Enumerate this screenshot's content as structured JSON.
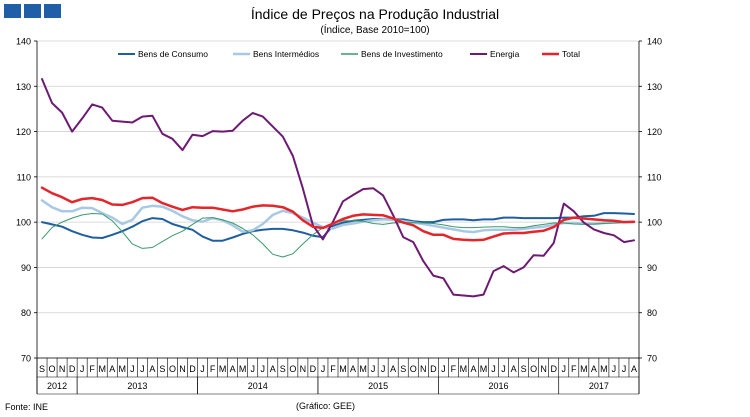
{
  "header": {
    "logo_icon": "ine-logo-blocks"
  },
  "chart_data": {
    "type": "line",
    "title": "Índice de Preços na Produção Industrial",
    "subtitle": "(Índice, Base 2010=100)",
    "ylim": [
      70,
      140
    ],
    "yticks": [
      70,
      80,
      90,
      100,
      110,
      120,
      130,
      140
    ],
    "grid": true,
    "legend": "top",
    "months": [
      "S",
      "O",
      "N",
      "D",
      "J",
      "F",
      "M",
      "A",
      "M",
      "J",
      "J",
      "A",
      "S",
      "O",
      "N",
      "D",
      "J",
      "F",
      "M",
      "A",
      "M",
      "J",
      "J",
      "A",
      "S",
      "O",
      "N",
      "D",
      "J",
      "F",
      "M",
      "A",
      "M",
      "J",
      "J",
      "A",
      "S",
      "O",
      "N",
      "D",
      "J",
      "F",
      "M",
      "A",
      "M",
      "J",
      "J",
      "A",
      "S",
      "O",
      "N",
      "D",
      "J",
      "F",
      "M",
      "A",
      "M",
      "J",
      "J",
      "A"
    ],
    "years": [
      {
        "label": "2012",
        "start": 0,
        "end": 4
      },
      {
        "label": "2013",
        "start": 4,
        "end": 16
      },
      {
        "label": "2014",
        "start": 16,
        "end": 28
      },
      {
        "label": "2015",
        "start": 28,
        "end": 40
      },
      {
        "label": "2016",
        "start": 40,
        "end": 52
      },
      {
        "label": "2017",
        "start": 52,
        "end": 60
      }
    ],
    "series": [
      {
        "name": "Bens de Consumo",
        "color": "#1f5fa0",
        "width": 2,
        "values": [
          100.0,
          99.5,
          99.0,
          98.0,
          97.2,
          96.6,
          96.5,
          97.2,
          98.0,
          99.0,
          100.2,
          100.9,
          100.7,
          99.6,
          98.9,
          98.3,
          96.8,
          95.9,
          95.9,
          96.6,
          97.4,
          98.0,
          98.3,
          98.5,
          98.5,
          98.2,
          97.7,
          97.0,
          96.7,
          99.2,
          99.9,
          100.3,
          100.5,
          100.7,
          100.7,
          100.6,
          100.6,
          100.2,
          100.0,
          100.0,
          100.5,
          100.6,
          100.6,
          100.4,
          100.6,
          100.6,
          101.0,
          101.0,
          100.9,
          100.9,
          100.9,
          100.9,
          101.0,
          101.0,
          101.3,
          101.4,
          102.0,
          102.0,
          101.9,
          101.8
        ]
      },
      {
        "name": "Bens Intermédios",
        "color": "#a9c8e3",
        "width": 2.5,
        "values": [
          104.8,
          103.3,
          102.4,
          102.4,
          103.2,
          103.1,
          102.0,
          101.0,
          99.6,
          100.5,
          103.2,
          103.6,
          103.4,
          102.5,
          101.3,
          100.4,
          100.1,
          100.9,
          100.4,
          99.3,
          97.9,
          98.2,
          99.6,
          101.6,
          102.5,
          102.0,
          101.0,
          99.9,
          98.9,
          98.6,
          99.4,
          99.7,
          100.1,
          100.4,
          100.6,
          100.5,
          100.2,
          99.9,
          99.6,
          99.2,
          98.8,
          98.4,
          98.0,
          97.8,
          98.2,
          98.3,
          98.3,
          98.3,
          98.5,
          98.8,
          99.0,
          99.4,
          99.8,
          99.8,
          99.7,
          99.6,
          99.8,
          99.9,
          100.0,
          100.0
        ]
      },
      {
        "name": "Bens de Investimento",
        "color": "#3a9a6a",
        "width": 1,
        "values": [
          96.3,
          98.8,
          100.0,
          100.9,
          101.6,
          101.9,
          101.8,
          100.3,
          97.9,
          95.2,
          94.2,
          94.4,
          95.7,
          97.0,
          98.0,
          99.5,
          100.9,
          101.0,
          100.5,
          99.8,
          98.6,
          97.2,
          95.2,
          92.9,
          92.3,
          93.0,
          95.2,
          97.2,
          98.8,
          99.8,
          100.3,
          100.3,
          100.2,
          99.7,
          99.5,
          99.8,
          99.9,
          99.9,
          99.8,
          99.7,
          99.4,
          99.0,
          98.8,
          98.8,
          98.9,
          99.0,
          99.0,
          98.8,
          98.8,
          99.2,
          99.5,
          99.8,
          99.8,
          99.6,
          99.5,
          99.6,
          99.7,
          99.8,
          99.9,
          100.0
        ]
      },
      {
        "name": "Energia",
        "color": "#6d1a73",
        "width": 2,
        "values": [
          131.6,
          126.3,
          124.2,
          120.0,
          122.9,
          126.0,
          125.3,
          122.4,
          122.2,
          122.0,
          123.3,
          123.5,
          119.5,
          118.4,
          115.9,
          119.3,
          119.0,
          120.1,
          120.0,
          120.2,
          122.4,
          124.1,
          123.3,
          121.1,
          118.9,
          114.6,
          107.4,
          99.3,
          96.2,
          100.1,
          104.6,
          106.0,
          107.3,
          107.5,
          105.9,
          101.5,
          96.7,
          95.6,
          91.4,
          88.2,
          87.6,
          84.0,
          83.8,
          83.6,
          84.0,
          89.2,
          90.3,
          88.9,
          90.0,
          92.7,
          92.6,
          95.4,
          104.1,
          102.4,
          99.9,
          98.4,
          97.6,
          97.1,
          95.6,
          96.0
        ]
      },
      {
        "name": "Total",
        "color": "#e3262b",
        "width": 2.5,
        "values": [
          107.6,
          106.4,
          105.5,
          104.4,
          105.1,
          105.3,
          104.9,
          103.9,
          103.8,
          104.4,
          105.3,
          105.4,
          104.2,
          103.4,
          102.7,
          103.3,
          103.2,
          103.2,
          102.8,
          102.4,
          102.8,
          103.4,
          103.7,
          103.6,
          103.3,
          102.3,
          100.4,
          99.0,
          98.7,
          99.7,
          100.7,
          101.4,
          101.7,
          101.6,
          101.5,
          100.8,
          99.9,
          99.3,
          98.0,
          97.2,
          97.2,
          96.3,
          96.1,
          96.0,
          96.1,
          96.8,
          97.5,
          97.6,
          97.6,
          97.9,
          98.1,
          98.9,
          100.5,
          101.0,
          100.8,
          100.6,
          100.4,
          100.3,
          100.0,
          100.1
        ]
      }
    ],
    "source": "Fonte: INE",
    "credit": "(Gráfico: GEE)"
  }
}
